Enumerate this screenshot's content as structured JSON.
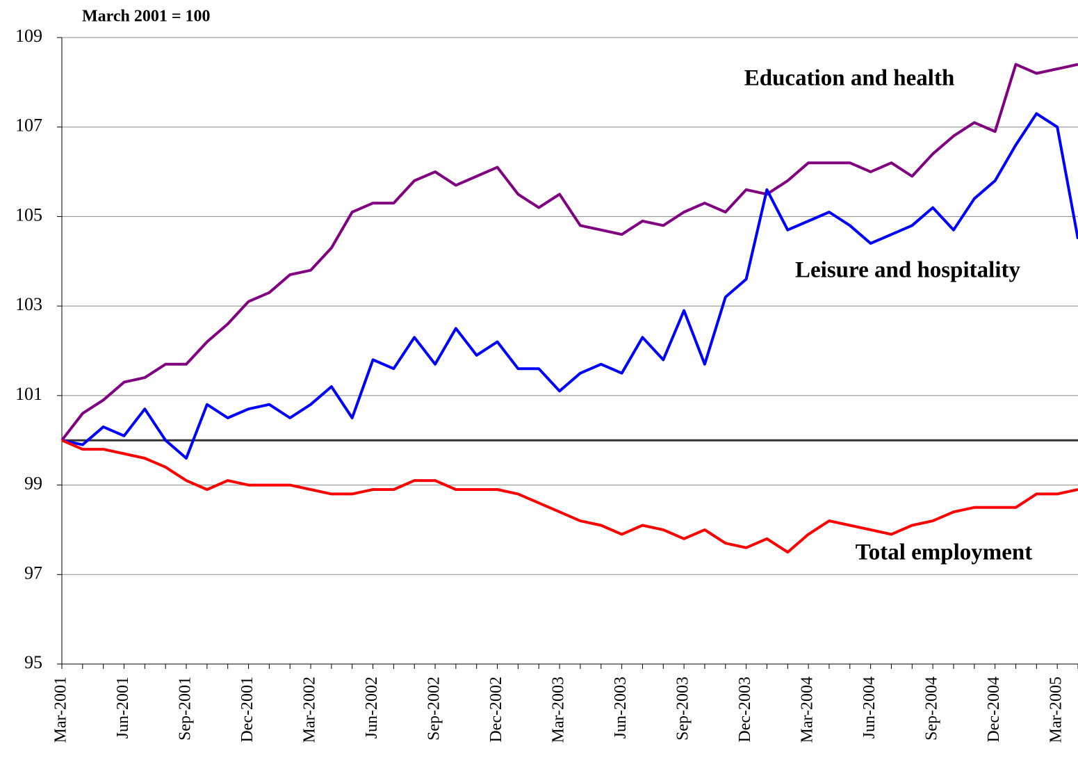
{
  "chart_data": {
    "type": "line",
    "subtitle": "March 2001 = 100",
    "categories": [
      "Mar-2001",
      null,
      null,
      "Jun-2001",
      null,
      null,
      "Sep-2001",
      null,
      null,
      "Dec-2001",
      null,
      null,
      "Mar-2002",
      null,
      null,
      "Jun-2002",
      null,
      null,
      "Sep-2002",
      null,
      null,
      "Dec-2002",
      null,
      null,
      "Mar-2003",
      null,
      null,
      "Jun-2003",
      null,
      null,
      "Sep-2003",
      null,
      null,
      "Dec-2003",
      null,
      null,
      "Mar-2004",
      null,
      null,
      "Jun-2004",
      null,
      null,
      "Sep-2004",
      null,
      null,
      "Dec-2004",
      null,
      null,
      "Mar-2005",
      null
    ],
    "series": [
      {
        "name": "Education and health",
        "color": "#800080",
        "values": [
          100,
          100.6,
          100.9,
          101.3,
          101.4,
          101.7,
          101.7,
          102.2,
          102.6,
          103.1,
          103.3,
          103.7,
          103.8,
          104.3,
          105.1,
          105.3,
          105.3,
          105.8,
          106.0,
          105.7,
          105.9,
          106.1,
          105.5,
          105.2,
          105.5,
          104.8,
          104.7,
          104.6,
          104.9,
          104.8,
          105.1,
          105.3,
          105.1,
          105.6,
          105.5,
          105.8,
          106.2,
          106.2,
          106.2,
          106.0,
          106.2,
          105.9,
          106.4,
          106.8,
          107.1,
          106.9,
          108.4,
          108.2,
          108.3,
          108.4
        ]
      },
      {
        "name": "Leisure and hospitality",
        "color": "#0000ff",
        "values": [
          100,
          99.9,
          100.3,
          100.1,
          100.7,
          100.0,
          99.6,
          100.8,
          100.5,
          100.7,
          100.8,
          100.5,
          100.8,
          101.2,
          100.5,
          101.8,
          101.6,
          102.3,
          101.7,
          102.5,
          101.9,
          102.2,
          101.6,
          101.6,
          101.1,
          101.5,
          101.7,
          101.5,
          102.3,
          101.8,
          102.9,
          101.7,
          103.2,
          103.6,
          105.6,
          104.7,
          104.9,
          105.1,
          104.8,
          104.4,
          104.6,
          104.8,
          105.2,
          104.7,
          105.4,
          105.8,
          106.6,
          107.3,
          107.0,
          104.5
        ]
      },
      {
        "name": "Total employment",
        "color": "#ff0000",
        "values": [
          100,
          99.8,
          99.8,
          99.7,
          99.6,
          99.4,
          99.1,
          98.9,
          99.1,
          99.0,
          99.0,
          99.0,
          98.9,
          98.8,
          98.8,
          98.9,
          98.9,
          99.1,
          99.1,
          98.9,
          98.9,
          98.9,
          98.8,
          98.6,
          98.4,
          98.2,
          98.1,
          97.9,
          98.1,
          98.0,
          97.8,
          98.0,
          97.7,
          97.6,
          97.8,
          97.5,
          97.9,
          98.2,
          98.1,
          98.0,
          97.9,
          98.1,
          98.2,
          98.4,
          98.5,
          98.5,
          98.5,
          98.8,
          98.8,
          98.9
        ]
      }
    ],
    "reference_line": 100,
    "ylim": [
      95,
      109
    ],
    "yticks": [
      95,
      97,
      99,
      101,
      103,
      105,
      107,
      109
    ],
    "grid": true
  }
}
